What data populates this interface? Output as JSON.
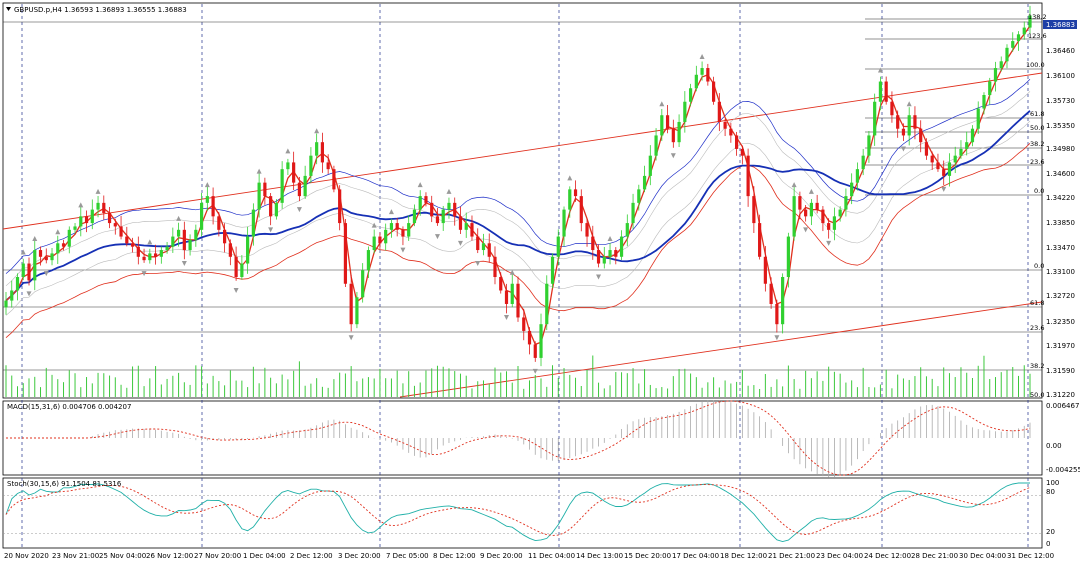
{
  "header": {
    "symbol_line": "GBPUSD.p,H4  1.36593 1.36893 1.36555 1.36883",
    "current_price": "1.36883"
  },
  "price_axis": {
    "labels": [
      "1.36460",
      "1.36100",
      "1.35730",
      "1.35350",
      "1.34980",
      "1.34600",
      "1.34220",
      "1.33850",
      "1.33470",
      "1.33100",
      "1.32720",
      "1.32350",
      "1.31970",
      "1.31590",
      "1.31220"
    ]
  },
  "fibo_labels": [
    "138.2",
    "123.6",
    "100.0",
    "61.8",
    "50.0",
    "38.2",
    "23.6",
    "0.0"
  ],
  "fibo_labels_lower": [
    "0.0",
    "61.8",
    "23.6",
    "38.2",
    "50.0"
  ],
  "macd": {
    "label": "MACD(15,31,6) 0.004706 0.004207",
    "axis": [
      "0.006467",
      "0.00",
      "-0.004255"
    ]
  },
  "stoch": {
    "label": "Stoch(30,15,6) 91.1504 81.5316",
    "axis": [
      "100",
      "80",
      "20",
      "0"
    ]
  },
  "x_axis": {
    "labels": [
      "20 Nov 2020",
      "23 Nov 21:00",
      "25 Nov 04:00",
      "26 Nov 12:00",
      "27 Nov 20:00",
      "1 Dec 04:00",
      "2 Dec 12:00",
      "3 Dec 20:00",
      "7 Dec 05:00",
      "8 Dec 12:00",
      "9 Dec 20:00",
      "11 Dec 04:00",
      "14 Dec 13:00",
      "15 Dec 20:00",
      "17 Dec 04:00",
      "18 Dec 12:00",
      "21 Dec 21:00",
      "23 Dec 04:00",
      "24 Dec 12:00",
      "28 Dec 21:00",
      "30 Dec 04:00",
      "31 Dec 12:00"
    ]
  },
  "chart_data": {
    "type": "candlestick",
    "title": "GBPUSD.p,H4",
    "ylim": [
      1.3122,
      1.3705
    ],
    "closes": [
      1.3265,
      1.328,
      1.33,
      1.332,
      1.3295,
      1.334,
      1.333,
      1.3325,
      1.3335,
      1.335,
      1.3345,
      1.337,
      1.3375,
      1.339,
      1.338,
      1.34,
      1.341,
      1.3395,
      1.338,
      1.3375,
      1.336,
      1.335,
      1.3345,
      1.333,
      1.3325,
      1.3335,
      1.333,
      1.334,
      1.3345,
      1.336,
      1.337,
      1.334,
      1.3355,
      1.337,
      1.341,
      1.342,
      1.339,
      1.337,
      1.335,
      1.333,
      1.33,
      1.332,
      1.336,
      1.34,
      1.344,
      1.342,
      1.339,
      1.341,
      1.346,
      1.347,
      1.344,
      1.342,
      1.345,
      1.348,
      1.35,
      1.347,
      1.346,
      1.343,
      1.338,
      1.329,
      1.323,
      1.327,
      1.331,
      1.334,
      1.336,
      1.335,
      1.337,
      1.338,
      1.337,
      1.336,
      1.338,
      1.34,
      1.342,
      1.341,
      1.339,
      1.338,
      1.34,
      1.341,
      1.339,
      1.337,
      1.338,
      1.336,
      1.334,
      1.335,
      1.333,
      1.33,
      1.328,
      1.326,
      1.329,
      1.324,
      1.322,
      1.32,
      1.318,
      1.323,
      1.329,
      1.333,
      1.336,
      1.34,
      1.343,
      1.342,
      1.338,
      1.336,
      1.334,
      1.332,
      1.333,
      1.334,
      1.333,
      1.336,
      1.338,
      1.341,
      1.343,
      1.345,
      1.348,
      1.351,
      1.354,
      1.352,
      1.35,
      1.353,
      1.356,
      1.358,
      1.36,
      1.361,
      1.359,
      1.356,
      1.353,
      1.352,
      1.351,
      1.349,
      1.348,
      1.342,
      1.338,
      1.333,
      1.329,
      1.326,
      1.323,
      1.33,
      1.336,
      1.342,
      1.34,
      1.339,
      1.341,
      1.34,
      1.338,
      1.337,
      1.339,
      1.34,
      1.342,
      1.344,
      1.346,
      1.348,
      1.351,
      1.356,
      1.359,
      1.356,
      1.354,
      1.352,
      1.351,
      1.354,
      1.352,
      1.35,
      1.348,
      1.347,
      1.346,
      1.345,
      1.347,
      1.348,
      1.349,
      1.35,
      1.352,
      1.355,
      1.357,
      1.359,
      1.361,
      1.362,
      1.364,
      1.365,
      1.366,
      1.367,
      1.3688
    ]
  }
}
